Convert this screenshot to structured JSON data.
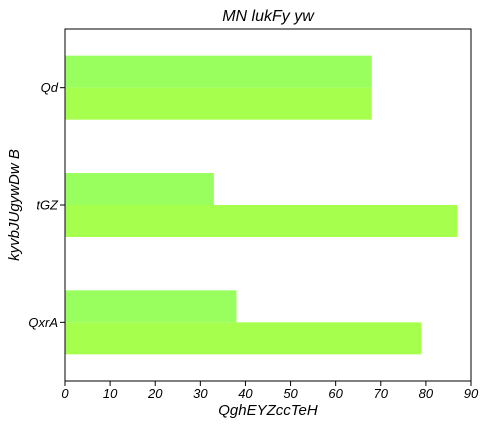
{
  "chart_data": {
    "type": "bar",
    "orientation": "horizontal",
    "title": "MN lukFy yw",
    "xlabel": "QghEYZccTeH",
    "ylabel": "kyvbJUgywDw B",
    "categories": [
      "Qd",
      "tGZ",
      "QxrA"
    ],
    "series": [
      {
        "values": [
          68,
          33,
          38
        ],
        "color": "#99ff5e"
      },
      {
        "values": [
          68,
          87,
          79
        ],
        "color": "#a6ff4d"
      }
    ],
    "xlim": [
      0,
      90
    ],
    "xticks": [
      0,
      10,
      20,
      30,
      40,
      50,
      60,
      70,
      80,
      90
    ],
    "grid": false
  }
}
